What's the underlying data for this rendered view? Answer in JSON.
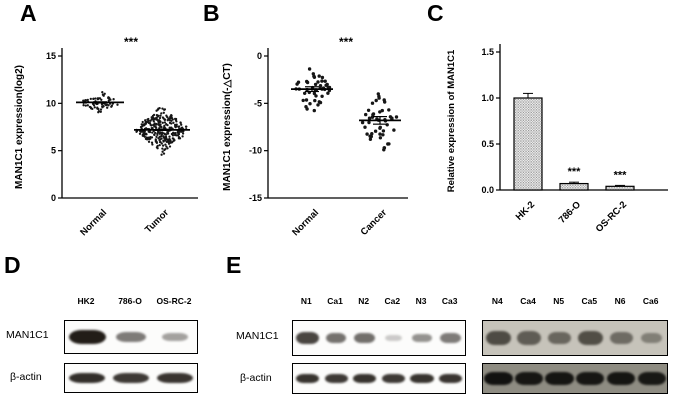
{
  "figure": {
    "panel_labels": [
      "A",
      "B",
      "C",
      "D",
      "E"
    ],
    "background": "#ffffff",
    "accent_color": "#000000"
  },
  "chart_data": [
    {
      "panel": "A",
      "type": "scatter",
      "ylabel": "MAN1C1 expression(log2)",
      "ylim": [
        0,
        15
      ],
      "yticks": [
        0,
        5,
        10,
        15
      ],
      "ytick_labels": [
        "0",
        "5",
        "10",
        "15"
      ],
      "categories": [
        "Normal",
        "Tumor"
      ],
      "significance": "***",
      "groups": [
        {
          "name": "Normal",
          "n": 70,
          "mean": 10.1,
          "sd": 0.45,
          "min": 8.8,
          "max": 11.3,
          "sem": 0.06
        },
        {
          "name": "Tumor",
          "n": 300,
          "mean": 7.2,
          "sd": 1.0,
          "min": 4.0,
          "max": 9.7,
          "sem": 0.06
        }
      ]
    },
    {
      "panel": "B",
      "type": "scatter",
      "ylabel": "MAN1C1 expression(-△CT)",
      "ylim": [
        -15,
        0
      ],
      "yticks": [
        0,
        -5,
        -10,
        -15
      ],
      "ytick_labels": [
        "0",
        "-5",
        "-10",
        "-15"
      ],
      "categories": [
        "Normal",
        "Cancer"
      ],
      "significance": "***",
      "groups": [
        {
          "name": "Normal",
          "n": 46,
          "mean": -3.5,
          "sd": 1.2,
          "min": -6.4,
          "max": -0.9,
          "sem": 0.25
        },
        {
          "name": "Cancer",
          "n": 46,
          "mean": -6.8,
          "sd": 1.9,
          "min": -11.3,
          "max": -2.0,
          "sem": 0.4
        }
      ]
    },
    {
      "panel": "C",
      "type": "bar",
      "ylabel": "Relative expression of MAN1C1",
      "ylim": [
        0,
        1.5
      ],
      "yticks": [
        0,
        0.5,
        1.0,
        1.5
      ],
      "ytick_labels": [
        "0.0",
        "0.5",
        "1.0",
        "1.5"
      ],
      "categories": [
        "HK-2",
        "786-O",
        "OS-RC-2"
      ],
      "values": [
        1.0,
        0.07,
        0.04
      ],
      "errors": [
        0.05,
        0.015,
        0.01
      ],
      "significance": [
        "",
        "***",
        "***"
      ]
    }
  ],
  "blots": {
    "D": {
      "lanes": [
        "HK2",
        "786-O",
        "OS-RC-2"
      ],
      "rows": [
        "MAN1C1",
        "β-actin"
      ],
      "MAN1C1": [
        1.0,
        0.5,
        0.3
      ],
      "actin": [
        0.92,
        0.85,
        0.88
      ]
    },
    "E": {
      "rows": [
        "MAN1C1",
        "β-actin"
      ],
      "left": {
        "lanes": [
          "N1",
          "Ca1",
          "N2",
          "Ca2",
          "N3",
          "Ca3"
        ],
        "MAN1C1": [
          0.85,
          0.6,
          0.62,
          0.12,
          0.42,
          0.55
        ],
        "actin": [
          0.9,
          0.85,
          0.9,
          0.85,
          0.9,
          0.88
        ]
      },
      "right": {
        "lanes": [
          "N4",
          "Ca4",
          "N5",
          "Ca5",
          "N6",
          "Ca6"
        ],
        "MAN1C1": [
          0.8,
          0.65,
          0.55,
          0.78,
          0.5,
          0.3
        ],
        "actin": [
          0.95,
          0.9,
          0.92,
          0.9,
          0.92,
          0.88
        ]
      }
    }
  }
}
